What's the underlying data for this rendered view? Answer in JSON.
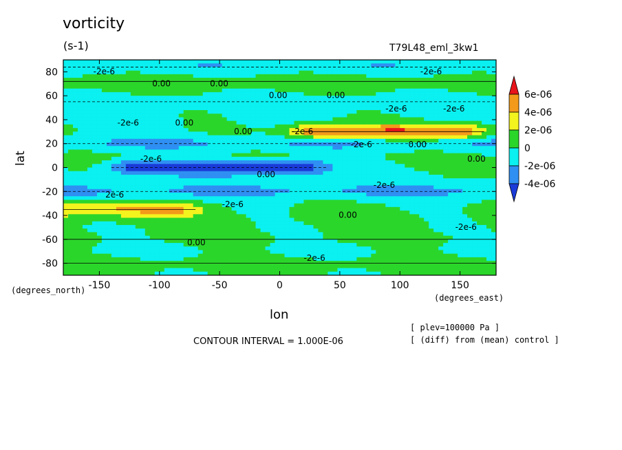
{
  "chart_data": {
    "type": "heatmap",
    "title": "vorticity",
    "units": "(s-1)",
    "run_label": "T79L48_eml_3kw1",
    "xlabel": "lon",
    "ylabel": "lat",
    "x_units": "(degrees_east)",
    "y_units": "(degrees_north)",
    "xlim": [
      -180,
      180
    ],
    "ylim": [
      -90,
      90
    ],
    "x_ticks": [
      -150,
      -100,
      -50,
      0,
      50,
      100,
      150
    ],
    "x_tick_labels": [
      "-150",
      "-100",
      "-50",
      "0",
      "50",
      "100",
      "150"
    ],
    "y_ticks": [
      80,
      60,
      40,
      20,
      0,
      -20,
      -40,
      -60,
      -80
    ],
    "y_tick_labels": [
      "80",
      "60",
      "40",
      "20",
      "0",
      "-20",
      "-40",
      "-60",
      "-80"
    ],
    "contour_interval": "CONTOUR INTERVAL = 1.000E-06",
    "level_note": "[ plev=100000 Pa ]",
    "diff_note": "[ (diff) from (mean) control ]",
    "colorbar": {
      "levels": [
        -4e-06,
        -2e-06,
        0,
        2e-06,
        4e-06,
        6e-06
      ],
      "labels": [
        "6e-06",
        "4e-06",
        "2e-06",
        "0",
        "-2e-06",
        "-4e-06"
      ],
      "colors": [
        "#e8141b",
        "#f39a1a",
        "#f3f31e",
        "#2bd62b",
        "#0bf0f0",
        "#2f8ff2",
        "#1a3bd8"
      ]
    },
    "contour_labels": [
      "-2e-6",
      "0.00",
      "0.00",
      "-2e-6",
      "0.00",
      "-2e-6",
      "0.00",
      "-2e-6",
      "0.00",
      "-2e-6",
      "2e-6",
      "-2e-6",
      "0.00",
      "-2e-6",
      "0.00",
      "-2e-6",
      "-2e-6",
      "0.00",
      "0.00",
      "-2e-6",
      "-2e-6",
      "0.00",
      "-2e-6",
      "0.00"
    ],
    "bands": [
      {
        "lat": 84,
        "lon_from": -180,
        "lon_to": 180,
        "value": -1.5e-06
      },
      {
        "lat": 72,
        "lon_from": -180,
        "lon_to": 180,
        "value": 5e-07
      },
      {
        "lat": 55,
        "lon_from": -180,
        "lon_to": 180,
        "value": -1e-06
      },
      {
        "lat": 30,
        "lon_from": 30,
        "lon_to": 150,
        "value": 6e-06
      },
      {
        "lat": 20,
        "lon_from": -180,
        "lon_to": 180,
        "value": -2.5e-06
      },
      {
        "lat": 0,
        "lon_from": -120,
        "lon_to": 20,
        "value": -5e-06
      },
      {
        "lat": -20,
        "lon_from": -180,
        "lon_to": 180,
        "value": -2e-06
      },
      {
        "lat": -35,
        "lon_from": -180,
        "lon_to": -90,
        "value": 4e-06
      },
      {
        "lat": -60,
        "lon_from": -180,
        "lon_to": 180,
        "value": 5e-07
      },
      {
        "lat": -80,
        "lon_from": -180,
        "lon_to": 180,
        "value": 1e-06
      }
    ]
  }
}
